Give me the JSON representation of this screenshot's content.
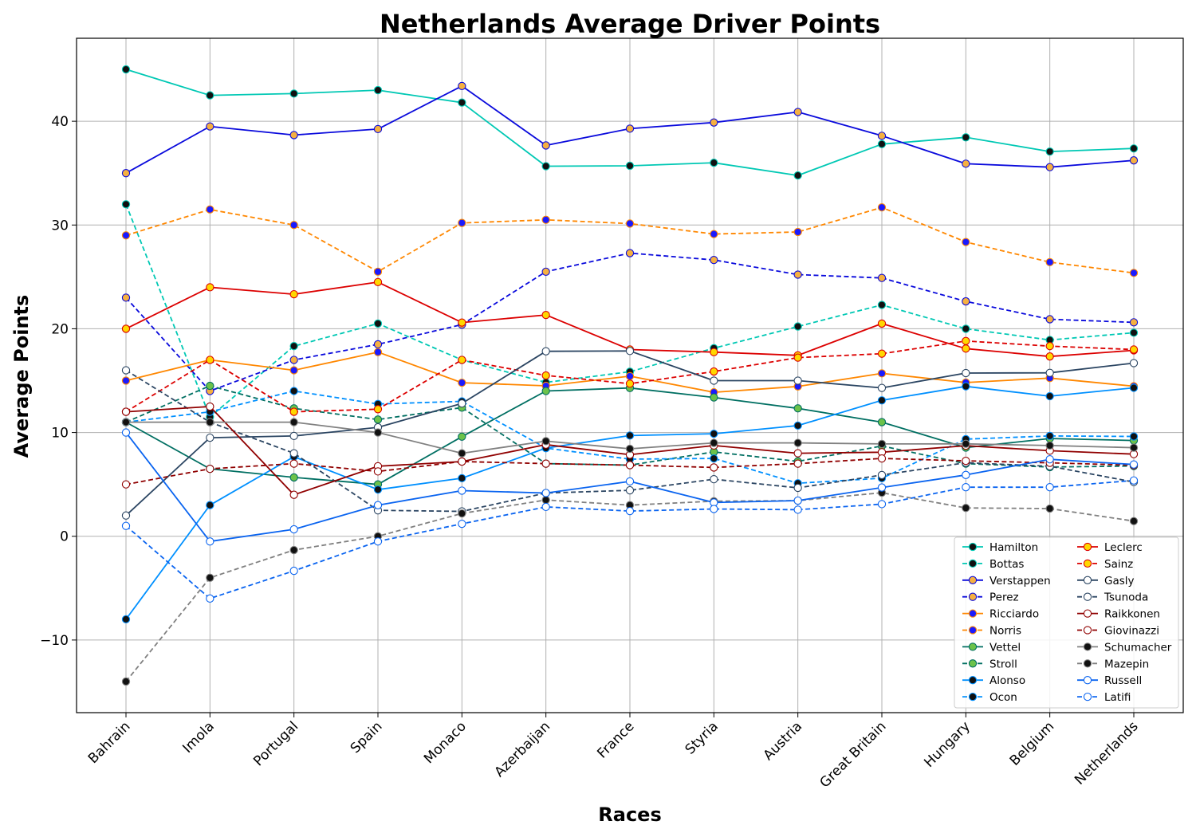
{
  "chart_data": {
    "type": "line",
    "title": "Netherlands Average Driver Points",
    "xlabel": "Races",
    "ylabel": "Average Points",
    "categories": [
      "Bahrain",
      "Imola",
      "Portugal",
      "Spain",
      "Monaco",
      "Azerbaijan",
      "France",
      "Styria",
      "Austria",
      "Great Britain",
      "Hungary",
      "Belgium",
      "Netherlands"
    ],
    "ylim": [
      -17,
      48
    ],
    "yticks": [
      -10,
      0,
      10,
      20,
      30,
      40
    ],
    "ytick_labels": [
      "−10",
      "0",
      "10",
      "20",
      "30",
      "40"
    ],
    "grid": true,
    "legend_position": "lower-right",
    "legend_columns": 2,
    "series": [
      {
        "name": "Hamilton",
        "color": "#00c8b4",
        "dash": "solid",
        "marker_fill": "#111111",
        "values": [
          45,
          42.5,
          42.67,
          43,
          41.8,
          35.67,
          35.71,
          36,
          34.78,
          37.8,
          38.45,
          37.08,
          37.38
        ]
      },
      {
        "name": "Bottas",
        "color": "#00c8b4",
        "dash": "dashed",
        "marker_fill": "#111111",
        "values": [
          32,
          11.5,
          18.33,
          20.5,
          17,
          14.83,
          15.86,
          18.13,
          20.22,
          22.3,
          20,
          18.92,
          19.62
        ]
      },
      {
        "name": "Verstappen",
        "color": "#0a0adc",
        "dash": "solid",
        "marker_fill": "#f5b041",
        "values": [
          35,
          39.5,
          38.67,
          39.25,
          43.4,
          37.67,
          39.29,
          39.88,
          40.89,
          38.6,
          35.91,
          35.58,
          36.23
        ]
      },
      {
        "name": "Perez",
        "color": "#0a0adc",
        "dash": "dashed",
        "marker_fill": "#f5b041",
        "values": [
          23,
          14,
          17,
          18.5,
          20.4,
          25.5,
          27.29,
          26.63,
          25.22,
          24.9,
          22.64,
          20.92,
          20.62
        ]
      },
      {
        "name": "Ricciardo",
        "color": "#ff8700",
        "dash": "solid",
        "marker_fill": "#1a1aff",
        "values": [
          15,
          17,
          16,
          17.75,
          14.8,
          14.5,
          15.43,
          13.88,
          14.44,
          15.7,
          14.82,
          15.25,
          14.46
        ]
      },
      {
        "name": "Norris",
        "color": "#ff8700",
        "dash": "dashed",
        "marker_fill": "#1a1aff",
        "values": [
          29,
          31.5,
          30,
          25.5,
          30.2,
          30.5,
          30.14,
          29.13,
          29.33,
          31.7,
          28.36,
          26.42,
          25.38
        ]
      },
      {
        "name": "Vettel",
        "color": "#006f62",
        "dash": "solid",
        "marker_fill": "#6cc24a",
        "values": [
          11,
          6.5,
          5.67,
          5,
          9.6,
          14,
          14.29,
          13.38,
          12.33,
          11,
          8.55,
          9.42,
          9.23
        ]
      },
      {
        "name": "Stroll",
        "color": "#006f62",
        "dash": "dashed",
        "marker_fill": "#6cc24a",
        "values": [
          11,
          14.5,
          12.33,
          11.25,
          12.4,
          7,
          6.86,
          8.13,
          7.22,
          8.7,
          7,
          6.67,
          6.77
        ]
      },
      {
        "name": "Alonso",
        "color": "#0090ff",
        "dash": "solid",
        "marker_fill": "#111111",
        "values": [
          -8,
          3,
          7.67,
          4.5,
          5.6,
          8.5,
          9.71,
          9.88,
          10.67,
          13.1,
          14.45,
          13.5,
          14.31
        ]
      },
      {
        "name": "Ocon",
        "color": "#0090ff",
        "dash": "dashed",
        "marker_fill": "#111111",
        "values": [
          11,
          12,
          14,
          12.75,
          13,
          8.5,
          7.43,
          7.5,
          5.11,
          5.6,
          9.36,
          9.67,
          9.62
        ]
      },
      {
        "name": "Leclerc",
        "color": "#dc0000",
        "dash": "solid",
        "marker_fill": "#ffd700",
        "values": [
          20,
          24,
          23.33,
          24.5,
          20.6,
          21.33,
          18,
          17.75,
          17.44,
          20.5,
          18.09,
          17.33,
          17.92
        ]
      },
      {
        "name": "Sainz",
        "color": "#dc0000",
        "dash": "dashed",
        "marker_fill": "#ffd700",
        "values": [
          12,
          17,
          12,
          12.25,
          17,
          15.5,
          14.71,
          15.88,
          17.22,
          17.6,
          18.82,
          18.33,
          18
        ]
      },
      {
        "name": "Gasly",
        "color": "#2b4562",
        "dash": "solid",
        "marker_fill": "#ffffff",
        "values": [
          2,
          9.5,
          9.67,
          10.5,
          12.8,
          17.83,
          17.86,
          15,
          15,
          14.3,
          15.73,
          15.75,
          16.69
        ]
      },
      {
        "name": "Tsunoda",
        "color": "#2b4562",
        "dash": "dashed",
        "marker_fill": "#ffffff",
        "values": [
          16,
          11,
          8,
          2.5,
          2.4,
          4.17,
          4.43,
          5.5,
          4.67,
          5.9,
          7.09,
          6.75,
          5.23
        ]
      },
      {
        "name": "Raikkonen",
        "color": "#900000",
        "dash": "solid",
        "marker_fill": "#ffffff",
        "values": [
          12,
          12.5,
          4,
          6.75,
          7.2,
          8.83,
          7.86,
          8.75,
          8,
          8.1,
          8.73,
          8.25,
          7.92
        ]
      },
      {
        "name": "Giovinazzi",
        "color": "#900000",
        "dash": "dashed",
        "marker_fill": "#ffffff",
        "values": [
          5,
          6.5,
          7,
          6.25,
          7.2,
          7,
          6.86,
          6.63,
          7,
          7.5,
          7.27,
          7.08,
          6.85
        ]
      },
      {
        "name": "Schumacher",
        "color": "#808080",
        "dash": "solid",
        "marker_fill": "#111111",
        "values": [
          11,
          11,
          11,
          10,
          8,
          9.17,
          8.43,
          9,
          9,
          8.9,
          8.91,
          8.75,
          8.54
        ]
      },
      {
        "name": "Mazepin",
        "color": "#808080",
        "dash": "dashed",
        "marker_fill": "#111111",
        "values": [
          -14,
          -4,
          -1.33,
          0,
          2.2,
          3.5,
          3,
          3.38,
          3.44,
          4.2,
          2.73,
          2.67,
          1.46
        ]
      },
      {
        "name": "Russell",
        "color": "#0a64f0",
        "dash": "solid",
        "marker_fill": "#ffffff",
        "values": [
          10,
          -0.5,
          0.67,
          3,
          4.4,
          4.17,
          5.29,
          3.25,
          3.44,
          4.7,
          5.91,
          7.42,
          6.92
        ]
      },
      {
        "name": "Latifi",
        "color": "#0a64f0",
        "dash": "dashed",
        "marker_fill": "#ffffff",
        "values": [
          1,
          -6,
          -3.33,
          -0.5,
          1.2,
          2.83,
          2.43,
          2.63,
          2.56,
          3.1,
          4.73,
          4.73,
          5.38
        ]
      }
    ]
  }
}
